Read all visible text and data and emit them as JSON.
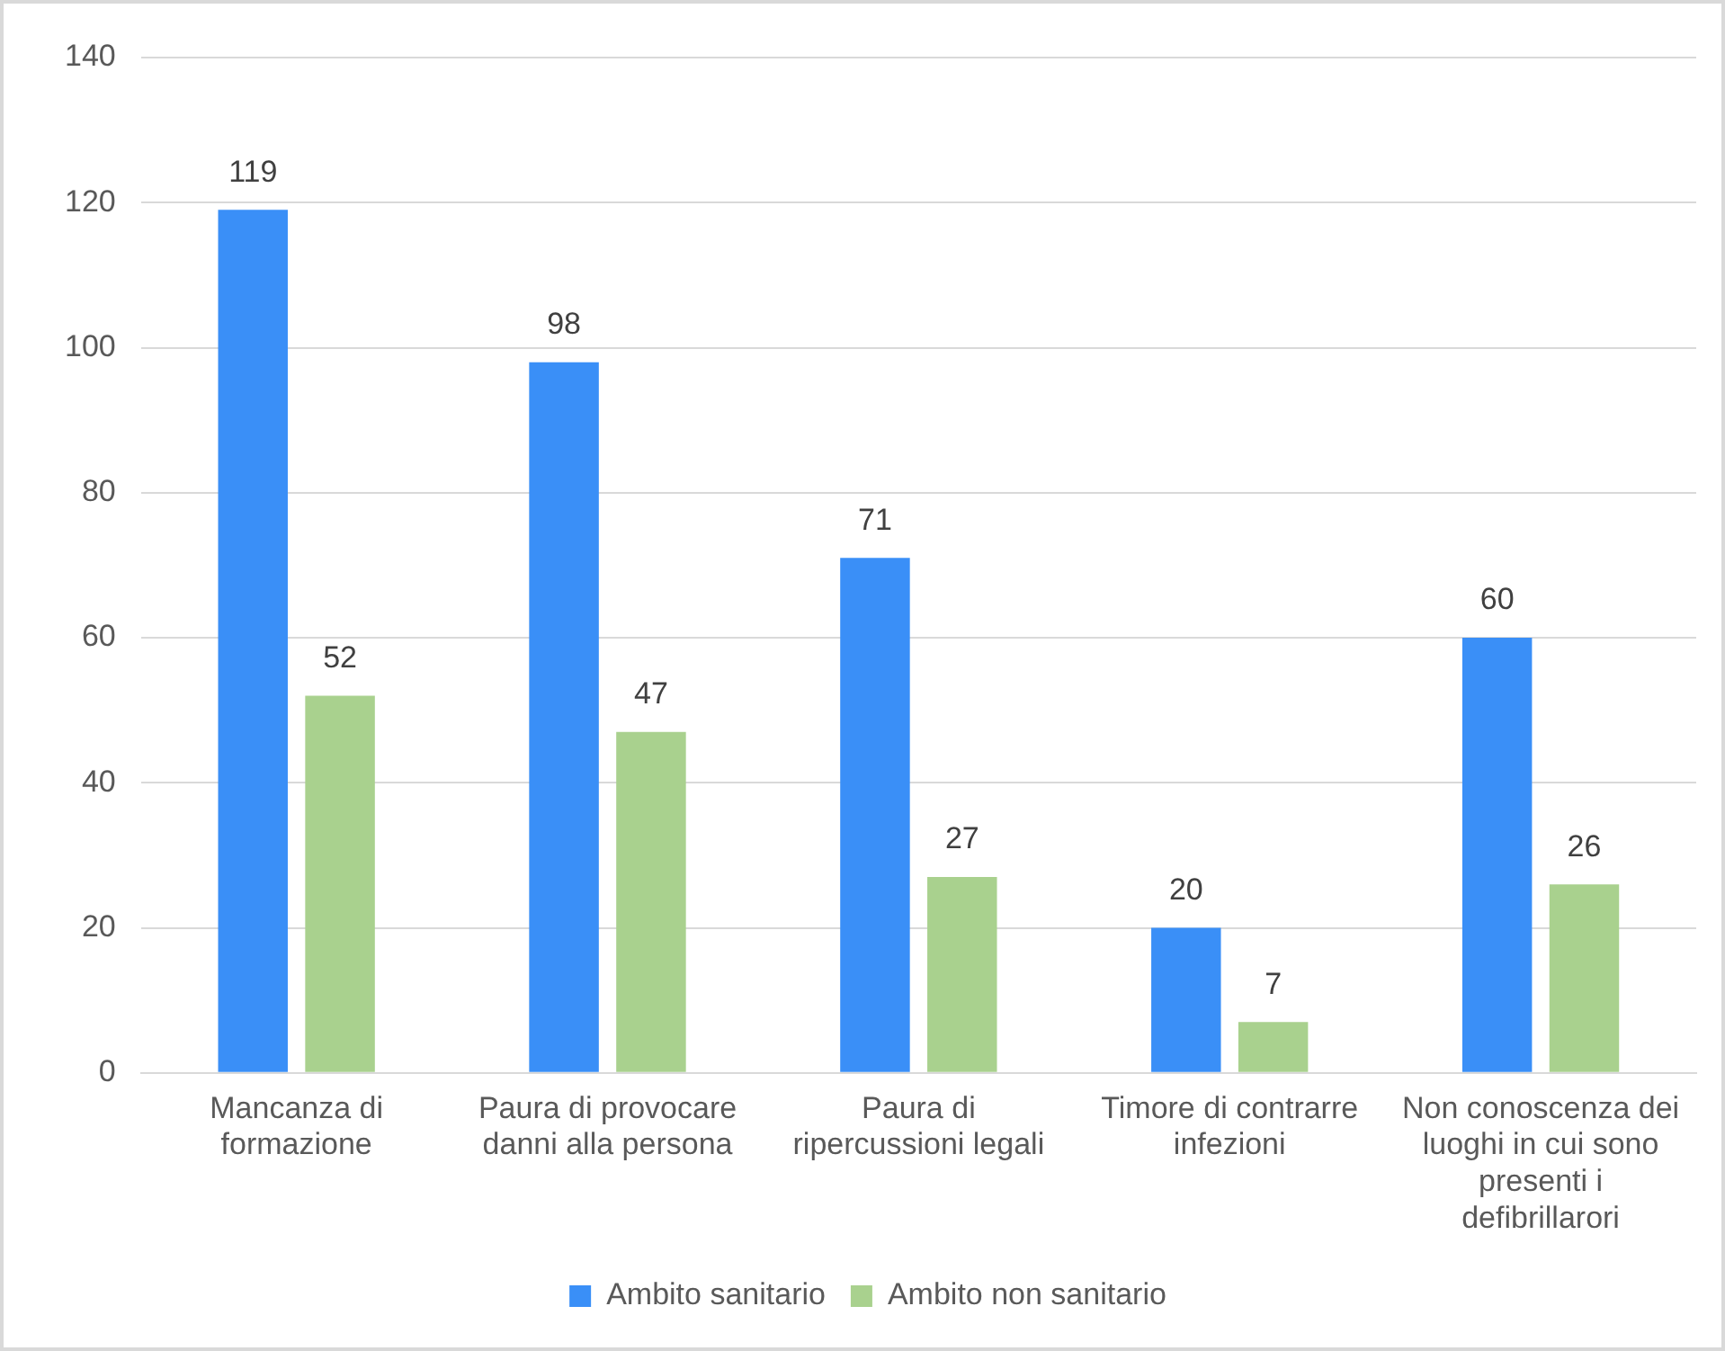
{
  "chart_data": {
    "type": "bar",
    "categories": [
      "Mancanza di formazione",
      "Paura di provocare danni alla persona",
      "Paura di ripercussioni legali",
      "Timore di contrarre infezioni",
      "Non conoscenza dei luoghi in cui sono presenti i defibrillarori"
    ],
    "series": [
      {
        "name": "Ambito sanitario",
        "color": "#3a8ff7",
        "values": [
          119,
          98,
          71,
          20,
          60
        ]
      },
      {
        "name": "Ambito non sanitario",
        "color": "#a9d18e",
        "values": [
          52,
          47,
          27,
          7,
          26
        ]
      }
    ],
    "ylim": [
      0,
      140
    ],
    "yticks": [
      0,
      20,
      40,
      60,
      80,
      100,
      120,
      140
    ],
    "grid": "y",
    "legend": "bottom",
    "data_labels": true
  }
}
